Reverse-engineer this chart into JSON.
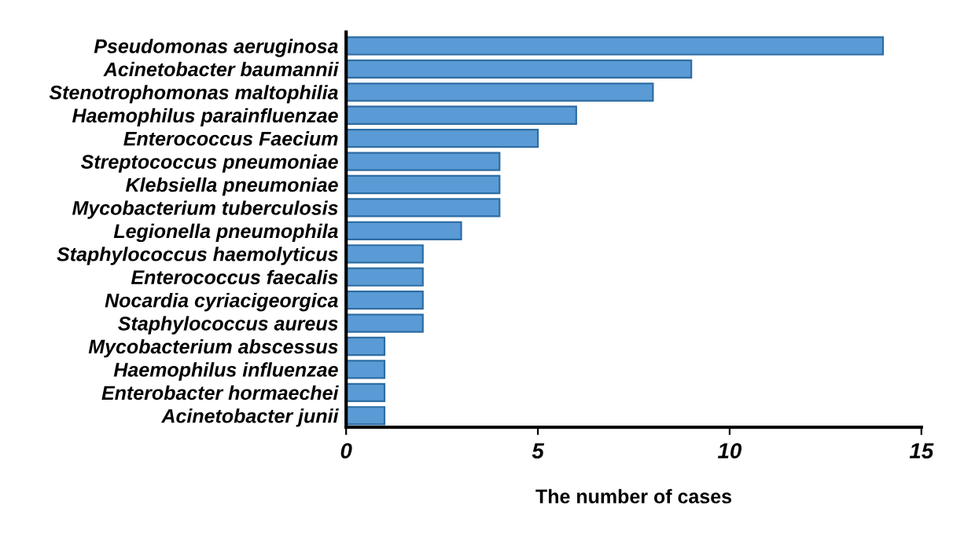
{
  "chart_data": {
    "type": "bar",
    "orientation": "horizontal",
    "xlabel": "The number of cases",
    "categories": [
      "Pseudomonas aeruginosa",
      "Acinetobacter baumannii",
      "Stenotrophomonas maltophilia",
      "Haemophilus parainfluenzae",
      "Enterococcus Faecium",
      "Streptococcus pneumoniae",
      "Klebsiella pneumoniae",
      "Mycobacterium tuberculosis",
      "Legionella pneumophila",
      "Staphylococcus haemolyticus",
      "Enterococcus faecalis",
      "Nocardia cyriacigeorgica",
      "Staphylococcus aureus",
      "Mycobacterium abscessus",
      "Haemophilus influenzae",
      "Enterobacter hormaechei",
      "Acinetobacter junii"
    ],
    "values": [
      14,
      9,
      8,
      6,
      5,
      4,
      4,
      4,
      3,
      2,
      2,
      2,
      2,
      1,
      1,
      1,
      1
    ],
    "color": "#5b9bd5",
    "xlim": [
      0,
      15
    ],
    "xticks": [
      0,
      5,
      10,
      15
    ],
    "grid": false,
    "legend": false
  }
}
